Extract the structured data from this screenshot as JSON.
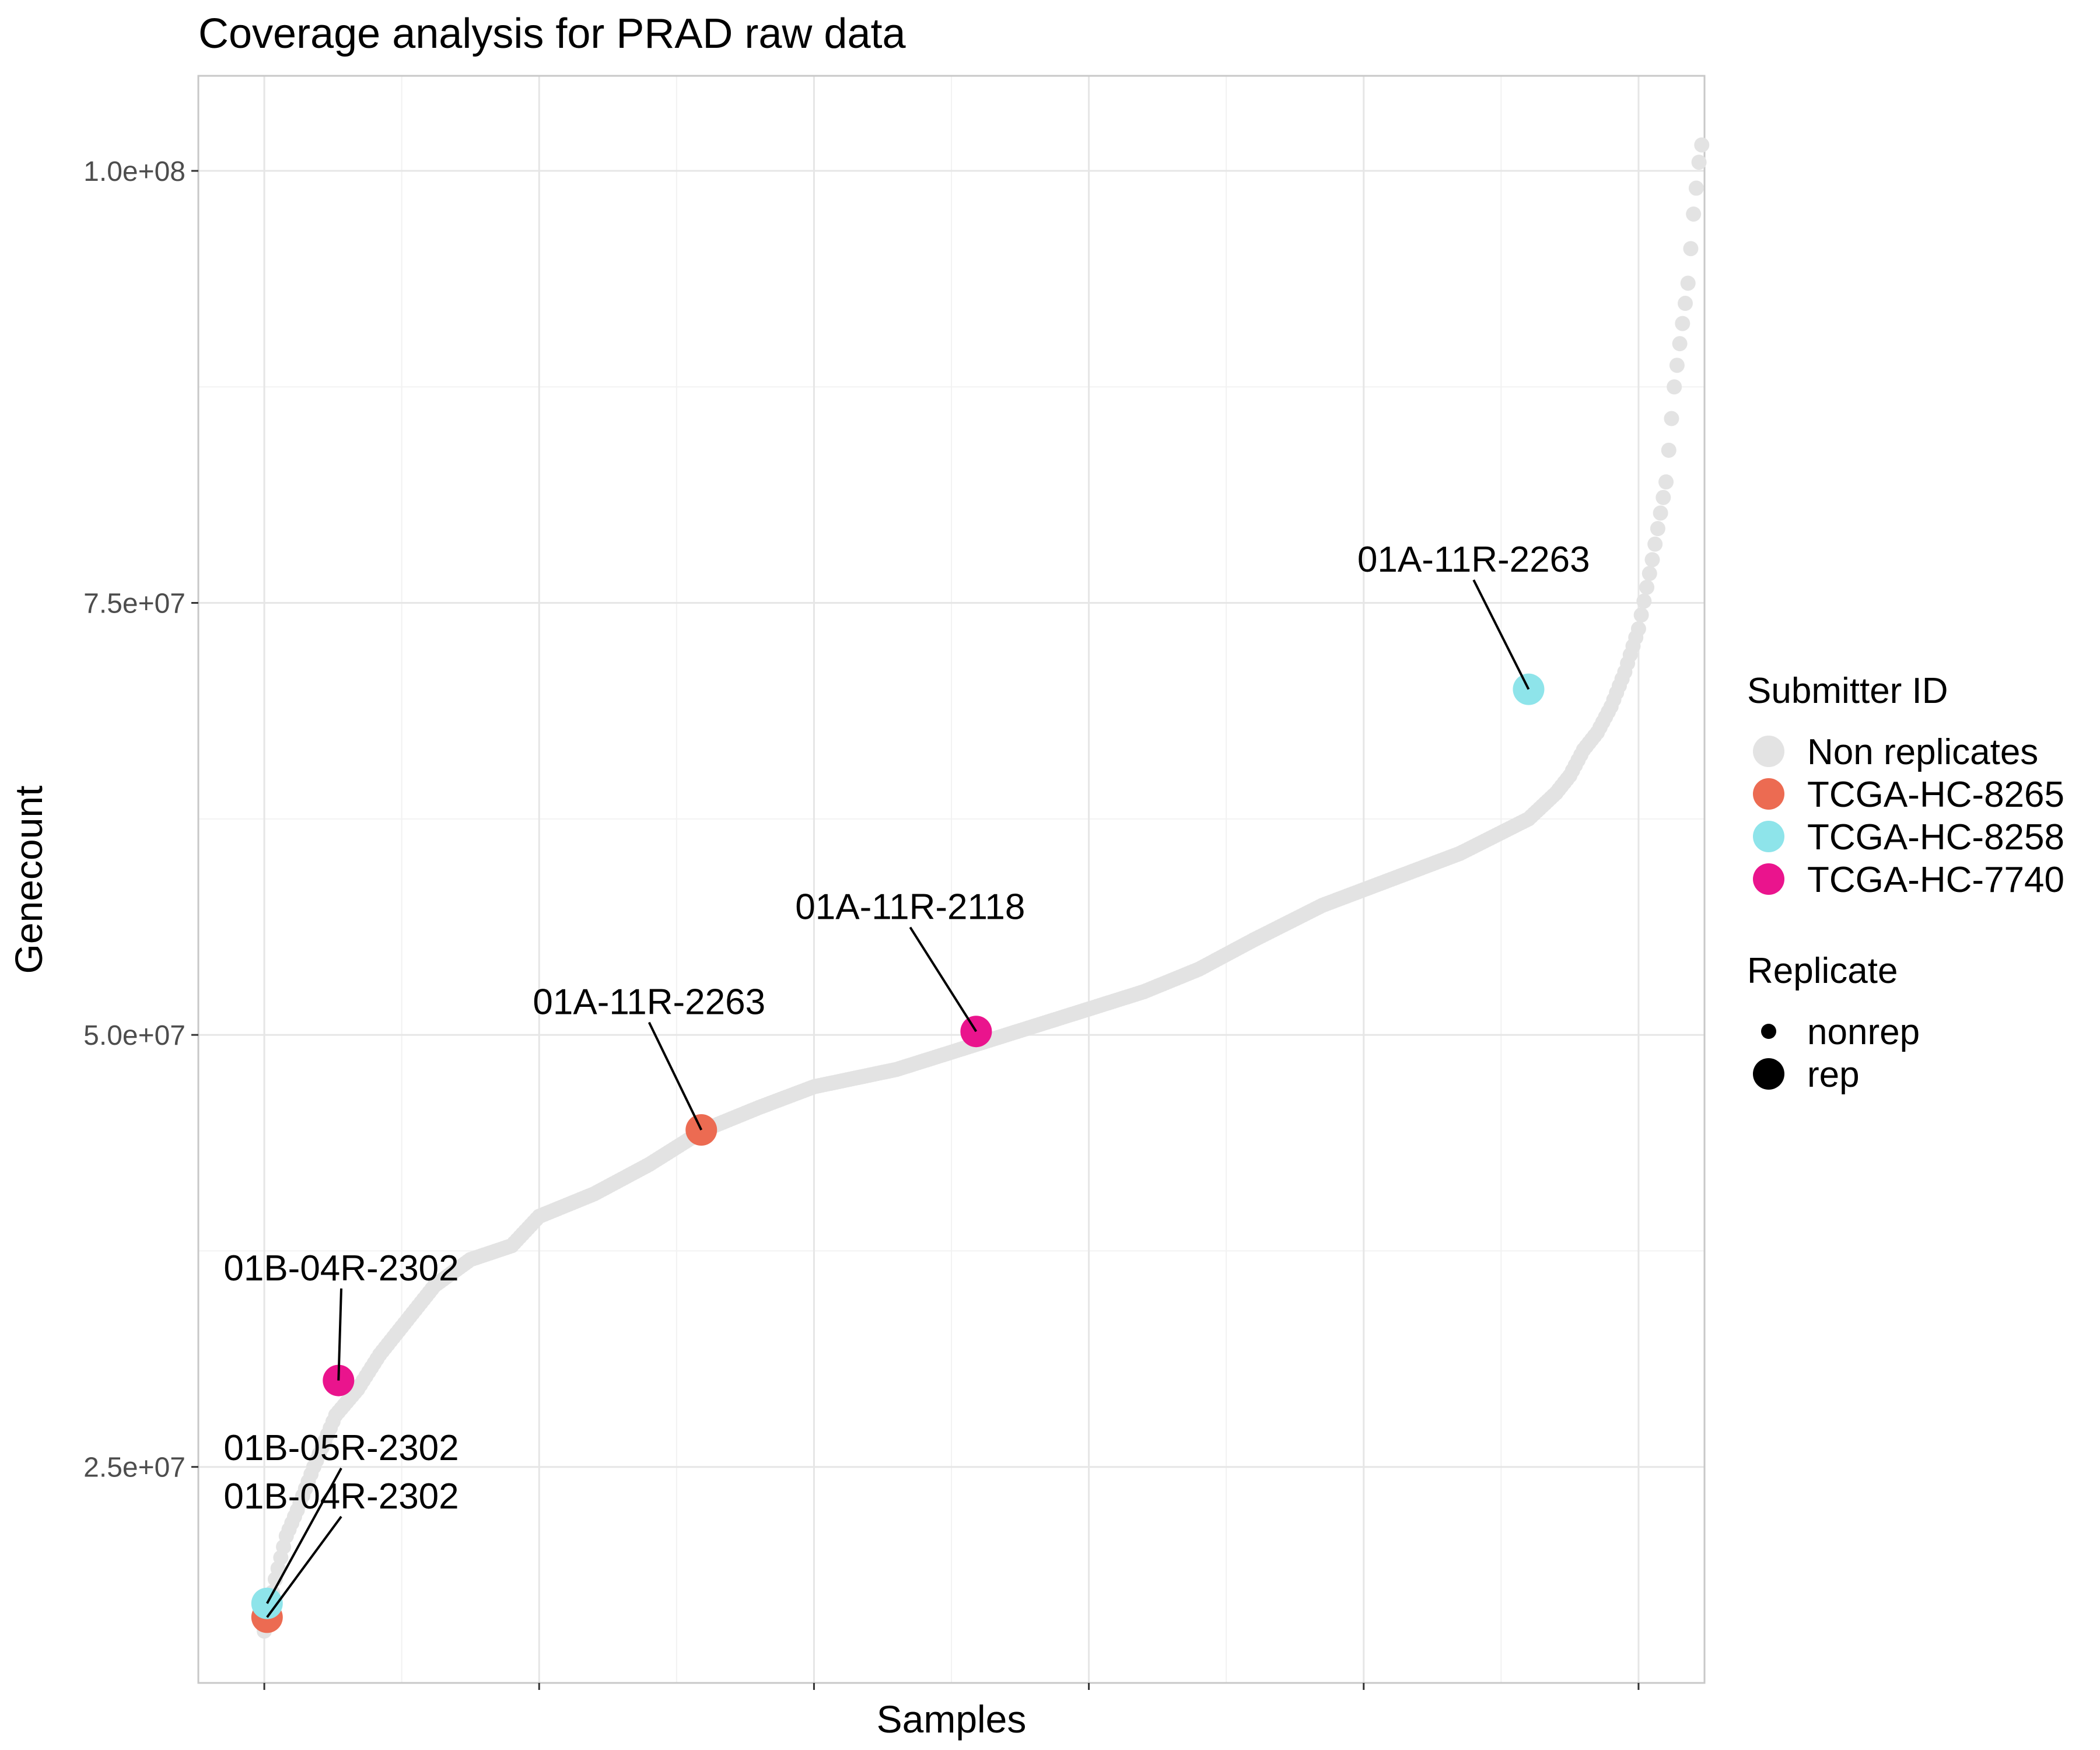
{
  "chart_data": {
    "type": "scatter",
    "title": "Coverage analysis for PRAD raw data",
    "xlabel": "Samples",
    "ylabel": "Genecount",
    "ylim": [
      12500000,
      105500000
    ],
    "xlim": [
      -24,
      524
    ],
    "y_ticks": [
      {
        "value": 25000000,
        "label": "2.5e+07"
      },
      {
        "value": 50000000,
        "label": "5.0e+07"
      },
      {
        "value": 75000000,
        "label": "7.5e+07"
      },
      {
        "value": 100000000,
        "label": "1.0e+08"
      }
    ],
    "y_minor_ticks": [
      37500000,
      62500000,
      87500000
    ],
    "x_ticks": [
      0,
      100,
      200,
      300,
      400,
      500
    ],
    "x_minor_ticks": [
      50,
      150,
      250,
      350,
      450
    ],
    "grid": true,
    "colors": {
      "Non replicates": "#e3e3e3",
      "TCGA-HC-8265": "#ec6b52",
      "TCGA-HC-8258": "#8ee4ea",
      "TCGA-HC-7740": "#ea148d"
    },
    "non_replicate_curve": [
      [
        0,
        15500000
      ],
      [
        4,
        18500000
      ],
      [
        8,
        21000000
      ],
      [
        12,
        22500000
      ],
      [
        18,
        25000000
      ],
      [
        26,
        28000000
      ],
      [
        34,
        29500000
      ],
      [
        42,
        31500000
      ],
      [
        52,
        33500000
      ],
      [
        62,
        35500000
      ],
      [
        75,
        37000000
      ],
      [
        90,
        37800000
      ],
      [
        100,
        39500000
      ],
      [
        120,
        40800000
      ],
      [
        140,
        42500000
      ],
      [
        160,
        44500000
      ],
      [
        180,
        45800000
      ],
      [
        200,
        47000000
      ],
      [
        230,
        48000000
      ],
      [
        260,
        49500000
      ],
      [
        290,
        51000000
      ],
      [
        320,
        52500000
      ],
      [
        340,
        53800000
      ],
      [
        360,
        55500000
      ],
      [
        385,
        57500000
      ],
      [
        410,
        59000000
      ],
      [
        435,
        60500000
      ],
      [
        460,
        62500000
      ],
      [
        470,
        64000000
      ],
      [
        475,
        65000000
      ],
      [
        480,
        66500000
      ],
      [
        485,
        67500000
      ],
      [
        490,
        69000000
      ],
      [
        495,
        71000000
      ],
      [
        500,
        73500000
      ],
      [
        505,
        77500000
      ],
      [
        510,
        82000000
      ],
      [
        513,
        87500000
      ],
      [
        515,
        90000000
      ],
      [
        518,
        93500000
      ],
      [
        520,
        97500000
      ],
      [
        522,
        100500000
      ],
      [
        523,
        101500000
      ]
    ],
    "replicates": [
      {
        "submitter": "TCGA-HC-8265",
        "x": 1,
        "y": 16300000,
        "label": "01B-04R-2302",
        "label_x": 28,
        "label_y": 22600000
      },
      {
        "submitter": "TCGA-HC-8258",
        "x": 1,
        "y": 17100000,
        "label": "01B-05R-2302",
        "label_x": 28,
        "label_y": 25400000
      },
      {
        "submitter": "TCGA-HC-7740",
        "x": 27,
        "y": 30000000,
        "label": "01B-04R-2302",
        "label_x": 28,
        "label_y": 35800000
      },
      {
        "submitter": "TCGA-HC-8265",
        "x": 159,
        "y": 44500000,
        "label": "01A-11R-2263",
        "label_x": 140,
        "label_y": 51200000
      },
      {
        "submitter": "TCGA-HC-7740",
        "x": 259,
        "y": 50200000,
        "label": "01A-11R-2118",
        "label_x": 235,
        "label_y": 56700000
      },
      {
        "submitter": "TCGA-HC-8258",
        "x": 460,
        "y": 70000000,
        "label": "01A-11R-2263",
        "label_x": 440,
        "label_y": 76800000
      }
    ],
    "legend": {
      "position": "right",
      "color_title": "Submitter ID",
      "color_entries": [
        "Non replicates",
        "TCGA-HC-8265",
        "TCGA-HC-8258",
        "TCGA-HC-7740"
      ],
      "size_title": "Replicate",
      "size_entries": [
        "nonrep",
        "rep"
      ]
    }
  }
}
